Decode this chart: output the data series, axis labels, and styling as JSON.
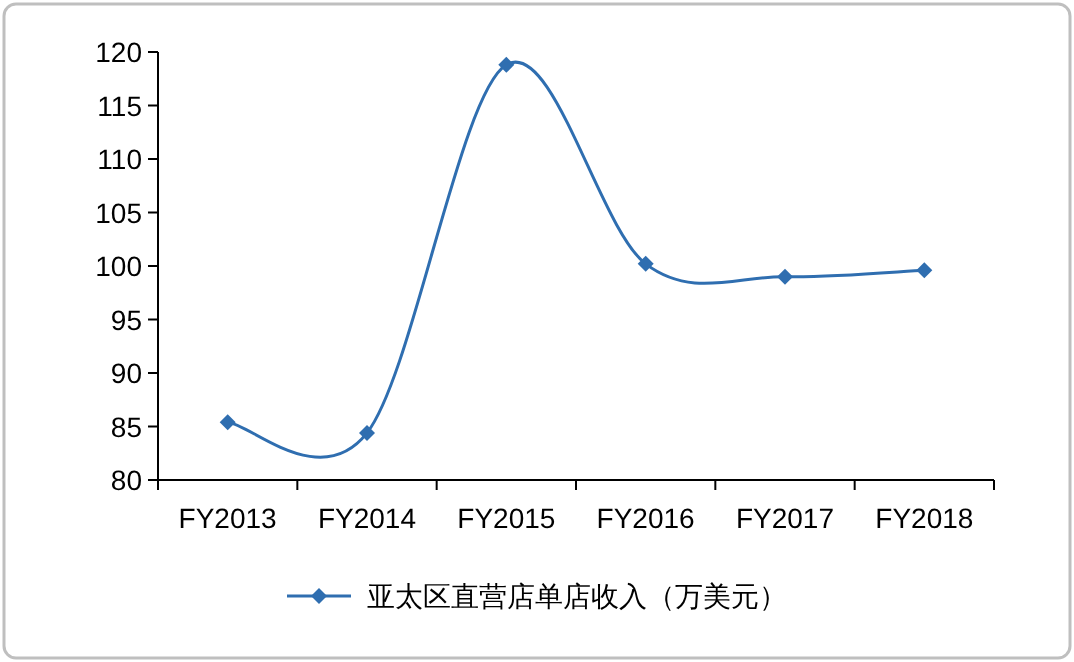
{
  "chart_data": {
    "type": "line",
    "categories": [
      "FY2013",
      "FY2014",
      "FY2015",
      "FY2016",
      "FY2017",
      "FY2018"
    ],
    "series": [
      {
        "name": "亚太区直营店单店收入（万美元）",
        "color": "#2f6eb0",
        "values": [
          85.4,
          84.4,
          118.8,
          100.2,
          99.0,
          99.6
        ]
      }
    ],
    "ylim": [
      80,
      120
    ],
    "yticks": [
      80,
      85,
      90,
      95,
      100,
      105,
      110,
      115,
      120
    ],
    "marker": "diamond",
    "line_style": "solid",
    "legend": "bottom",
    "grid": false
  }
}
